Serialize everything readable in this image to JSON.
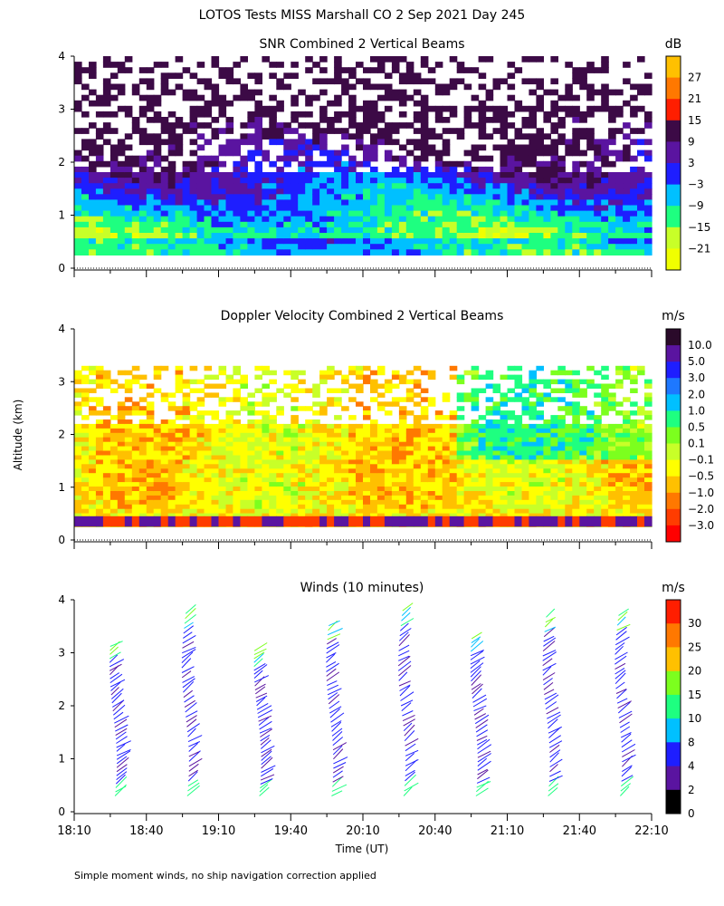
{
  "chart_data": {
    "type": "heatmap",
    "title": "LOTOS Tests MISS Marshall CO   2 Sep 2021 Day 245",
    "shared_ylabel": "Altitude (km)",
    "xlabel": "Time (UT)",
    "x_ticks": [
      "18:10",
      "18:40",
      "19:10",
      "19:40",
      "20:10",
      "20:40",
      "21:10",
      "21:40",
      "22:10"
    ],
    "y_ticks": [
      "0",
      "1",
      "2",
      "3",
      "4"
    ],
    "footnote": "Simple moment winds, no ship navigation correction applied",
    "panels": [
      {
        "title": "SNR Combined 2 Vertical Beams",
        "units": "dB",
        "type": "heatmap",
        "ylim": [
          0,
          4
        ],
        "colorbar": {
          "labels": [
            "27",
            "21",
            "15",
            "9",
            "3",
            "−3",
            "−9",
            "−15",
            "−21"
          ],
          "colors": [
            "#ffc000",
            "#ff7800",
            "#ff1e00",
            "#3c0a46",
            "#5a14a0",
            "#1e1eff",
            "#00c0ff",
            "#1eff80",
            "#c8ff28",
            "#f0ff00"
          ]
        }
      },
      {
        "title": "Doppler Velocity Combined 2 Vertical Beams",
        "units": "m/s",
        "type": "heatmap",
        "ylim": [
          0,
          4
        ],
        "colorbar": {
          "labels": [
            "10.0",
            "5.0",
            "3.0",
            "2.0",
            "1.0",
            "0.5",
            "0.1",
            "−0.1",
            "−0.5",
            "−1.0",
            "−2.0",
            "−3.0"
          ],
          "colors": [
            "#2a0a2a",
            "#5a14a0",
            "#1e1eff",
            "#1e78ff",
            "#00c0ff",
            "#1eff80",
            "#7cff1e",
            "#c8ff28",
            "#ffff00",
            "#ffc000",
            "#ff7800",
            "#ff3c00",
            "#ff0000"
          ]
        }
      },
      {
        "title": "Winds (10 minutes)",
        "units": "m/s",
        "type": "wind_barbs",
        "ylim": [
          0,
          4
        ],
        "colorbar": {
          "labels": [
            "30",
            "25",
            "20",
            "15",
            "10",
            "8",
            "4",
            "2",
            "0"
          ],
          "colors": [
            "#ff1e00",
            "#ff7800",
            "#ffc000",
            "#7cff1e",
            "#1eff80",
            "#00c0ff",
            "#1e1eff",
            "#5a14a0",
            "#000000"
          ]
        },
        "profile_times": [
          "18:30",
          "19:00",
          "19:30",
          "20:00",
          "20:30",
          "21:00",
          "21:30",
          "22:00"
        ]
      }
    ]
  }
}
